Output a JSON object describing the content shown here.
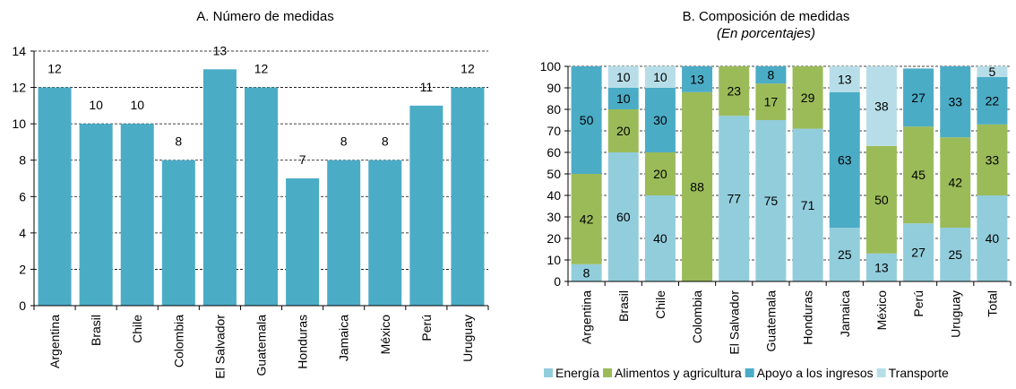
{
  "chart_data": [
    {
      "type": "bar",
      "title": "A. Número de medidas",
      "categories": [
        "Argentina",
        "Brasil",
        "Chile",
        "Colombia",
        "El Salvador",
        "Guatemala",
        "Honduras",
        "Jamaica",
        "México",
        "Perú",
        "Uruguay"
      ],
      "values": [
        12,
        10,
        10,
        8,
        13,
        12,
        7,
        8,
        8,
        11,
        12
      ],
      "ylim": [
        0,
        14
      ],
      "yticks": [
        0,
        2,
        4,
        6,
        8,
        10,
        12,
        14
      ],
      "bar_color": "#4BACC6",
      "grid": true
    },
    {
      "type": "bar",
      "stacked": true,
      "title": "B. Composición de medidas",
      "subtitle": "(En porcentajes)",
      "categories": [
        "Argentina",
        "Brasil",
        "Chile",
        "Colombia",
        "El Salvador",
        "Guatemala",
        "Honduras",
        "Jamaica",
        "México",
        "Perú",
        "Uruguay",
        "Total"
      ],
      "ylim": [
        0,
        100
      ],
      "yticks": [
        0,
        10,
        20,
        30,
        40,
        50,
        60,
        70,
        80,
        90,
        100
      ],
      "legend_position": "bottom",
      "grid": true,
      "series": [
        {
          "name": "Energía",
          "color": "#92CDDC",
          "values": [
            8,
            60,
            40,
            0,
            77,
            75,
            71,
            25,
            13,
            27,
            25,
            40
          ],
          "labels": [
            "8",
            "60",
            "40",
            "",
            "77",
            "75",
            "71",
            "25",
            "13",
            "27",
            "25",
            "40"
          ]
        },
        {
          "name": "Alimentos y agricultura",
          "color": "#9BBB59",
          "values": [
            42,
            20,
            20,
            88,
            23,
            17,
            29,
            0,
            50,
            45,
            42,
            33
          ],
          "labels": [
            "42",
            "20",
            "20",
            "88",
            "23",
            "17",
            "29",
            "",
            "50",
            "45",
            "42",
            "33"
          ]
        },
        {
          "name": "Apoyo a los ingresos",
          "color": "#4BACC6",
          "values": [
            50,
            10,
            30,
            13,
            0,
            8,
            0,
            63,
            0,
            27,
            33,
            22
          ],
          "labels": [
            "50",
            "10",
            "30",
            "13",
            "",
            "8",
            "",
            "63",
            "",
            "27",
            "33",
            "22"
          ]
        },
        {
          "name": "Transporte",
          "color": "#B7DEE8",
          "values": [
            0,
            10,
            10,
            0,
            0,
            0,
            0,
            13,
            38,
            0,
            0,
            5
          ],
          "labels": [
            "",
            "10",
            "10",
            "",
            "",
            "",
            "",
            "13",
            "38",
            "",
            "",
            "5"
          ]
        }
      ]
    }
  ]
}
